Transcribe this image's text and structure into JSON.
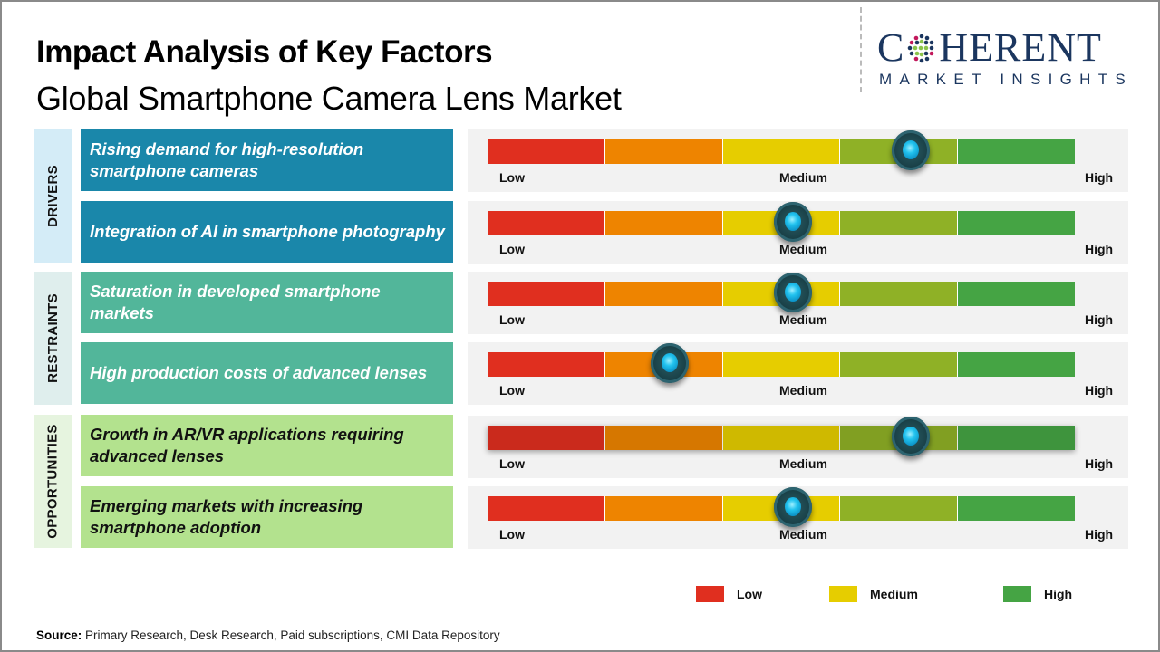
{
  "header": {
    "title": "Impact Analysis of Key Factors",
    "subtitle": "Global Smartphone Camera Lens Market"
  },
  "logo": {
    "main_left": "C",
    "main_right": "HERENT",
    "sub": "MARKET INSIGHTS",
    "color": "#1b365f"
  },
  "categories": {
    "drivers": "DRIVERS",
    "restraints": "RESTRAINTS",
    "opportunities": "OPPORTUNITIES"
  },
  "scale_labels": {
    "low": "Low",
    "medium": "Medium",
    "high": "High"
  },
  "segment_colors": [
    "#e02f1f",
    "#ee8400",
    "#e6cd00",
    "#8fb126",
    "#45a444"
  ],
  "chart_data": {
    "type": "gauge",
    "title": "Impact Analysis of Key Factors",
    "subtitle": "Global Smartphone Camera Lens Market",
    "scale": [
      "Low",
      "Medium",
      "High"
    ],
    "range": [
      0,
      1
    ],
    "factors": [
      {
        "category": "DRIVERS",
        "label": "Rising demand for high-resolution smartphone cameras",
        "impact": 0.72
      },
      {
        "category": "DRIVERS",
        "label": "Integration of AI in smartphone photography",
        "impact": 0.52
      },
      {
        "category": "RESTRAINTS",
        "label": "Saturation in developed smartphone markets",
        "impact": 0.52
      },
      {
        "category": "RESTRAINTS",
        "label": "High production costs of advanced lenses",
        "impact": 0.31
      },
      {
        "category": "OPPORTUNITIES",
        "label": "Growth in AR/VR applications requiring advanced lenses",
        "impact": 0.72
      },
      {
        "category": "OPPORTUNITIES",
        "label": "Emerging markets with increasing smartphone adoption",
        "impact": 0.52
      }
    ],
    "legend": [
      {
        "label": "Low",
        "color": "#e02f1f"
      },
      {
        "label": "Medium",
        "color": "#e6cd00"
      },
      {
        "label": "High",
        "color": "#45a444"
      }
    ],
    "legend_position": "bottom-right"
  },
  "source": {
    "label": "Source:",
    "text": " Primary Research, Desk Research, Paid subscriptions, CMI Data Repository"
  }
}
